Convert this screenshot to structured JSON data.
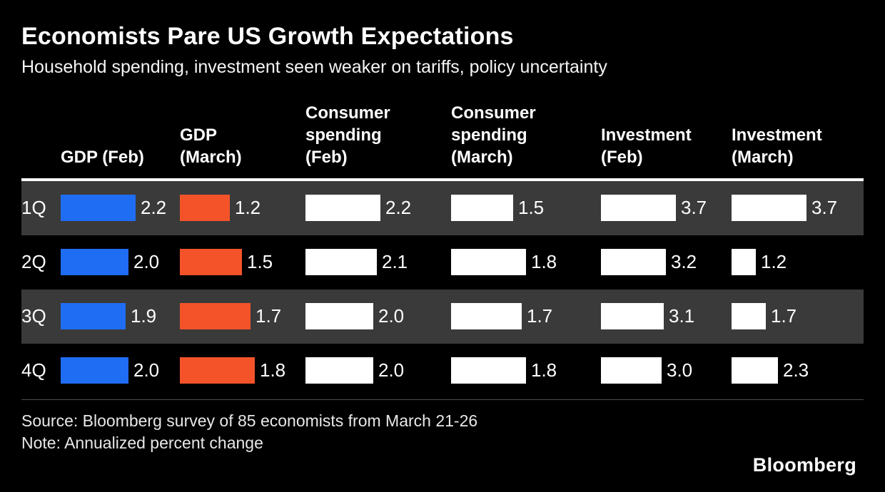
{
  "header": {
    "title": "Economists Pare US Growth Expectations",
    "subtitle": "Household spending, investment seen weaker on tariffs, policy uncertainty"
  },
  "footer": {
    "source": "Source: Bloomberg survey of 85 economists from March 21-26",
    "note": "Note: Annualized percent change",
    "brand": "Bloomberg"
  },
  "colors": {
    "background": "#000000",
    "row_alt": "#3a3a3a",
    "gdp_feb_blue": "#1f6df2",
    "gdp_march_orange": "#f4532a",
    "white_bar": "#ffffff",
    "header_rule": "#ffffff",
    "footer_rule": "#4f4f4f"
  },
  "chart_data": {
    "type": "bar",
    "title": "Economists Pare US Growth Expectations",
    "subtitle": "Household spending, investment seen weaker on tariffs, policy uncertainty",
    "orientation": "horizontal",
    "value_unit": "annualized percent change",
    "categories": [
      "1Q",
      "2Q",
      "3Q",
      "4Q"
    ],
    "series": [
      {
        "name": "GDP (Feb)",
        "label": "GDP (Feb)",
        "color": "#1f6df2",
        "values": [
          2.2,
          2.0,
          1.9,
          2.0
        ]
      },
      {
        "name": "GDP (March)",
        "label": "GDP\n(March)",
        "color": "#f4532a",
        "values": [
          1.2,
          1.5,
          1.7,
          1.8
        ]
      },
      {
        "name": "Consumer spending (Feb)",
        "label": "Consumer\nspending\n(Feb)",
        "color": "#ffffff",
        "values": [
          2.2,
          2.1,
          2.0,
          2.0
        ]
      },
      {
        "name": "Consumer spending (March)",
        "label": "Consumer\nspending\n(March)",
        "color": "#ffffff",
        "values": [
          1.5,
          1.8,
          1.7,
          1.8
        ]
      },
      {
        "name": "Investment (Feb)",
        "label": "Investment\n(Feb)",
        "color": "#ffffff",
        "values": [
          3.7,
          3.2,
          3.1,
          3.0
        ]
      },
      {
        "name": "Investment (March)",
        "label": "Investment\n(March)",
        "color": "#ffffff",
        "values": [
          3.7,
          1.2,
          1.7,
          2.3
        ]
      }
    ],
    "legend": "none",
    "grid": "off",
    "row_shading": "alternate dark gray on 1Q and 3Q"
  }
}
